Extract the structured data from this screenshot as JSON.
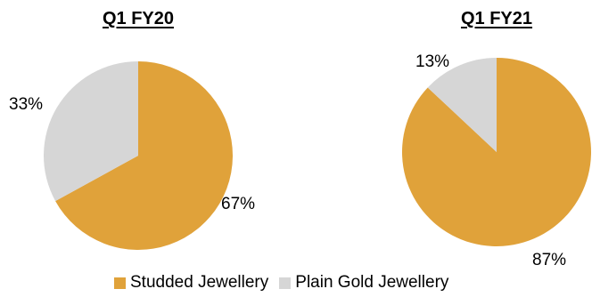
{
  "chart_data": [
    {
      "type": "pie",
      "title": "Q1 FY20",
      "categories": [
        "Studded Jewellery",
        "Plain Gold Jewellery"
      ],
      "values": [
        67,
        33
      ],
      "labels": [
        "67%",
        "33%"
      ]
    },
    {
      "type": "pie",
      "title": "Q1 FY21",
      "categories": [
        "Studded Jewellery",
        "Plain Gold Jewellery"
      ],
      "values": [
        87,
        13
      ],
      "labels": [
        "87%",
        "13%"
      ]
    }
  ],
  "legend": {
    "placement": "bottom",
    "items": [
      {
        "label": "Studded Jewellery",
        "color": "#E0A23A"
      },
      {
        "label": "Plain Gold Jewellery",
        "color": "#D6D6D6"
      }
    ]
  }
}
